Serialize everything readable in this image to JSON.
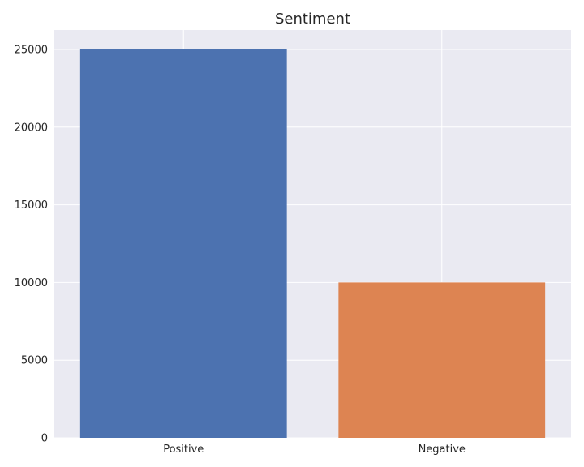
{
  "chart_data": {
    "type": "bar",
    "title": "Sentiment",
    "categories": [
      "Positive",
      "Negative"
    ],
    "values": [
      25000,
      10000
    ],
    "colors": [
      "#4c72b0",
      "#dd8452"
    ],
    "xlabel": "",
    "ylabel": "",
    "ylim": [
      0,
      26250
    ],
    "yticks": [
      0,
      5000,
      10000,
      15000,
      20000,
      25000
    ],
    "grid": true,
    "background": "#eaeaf2"
  }
}
